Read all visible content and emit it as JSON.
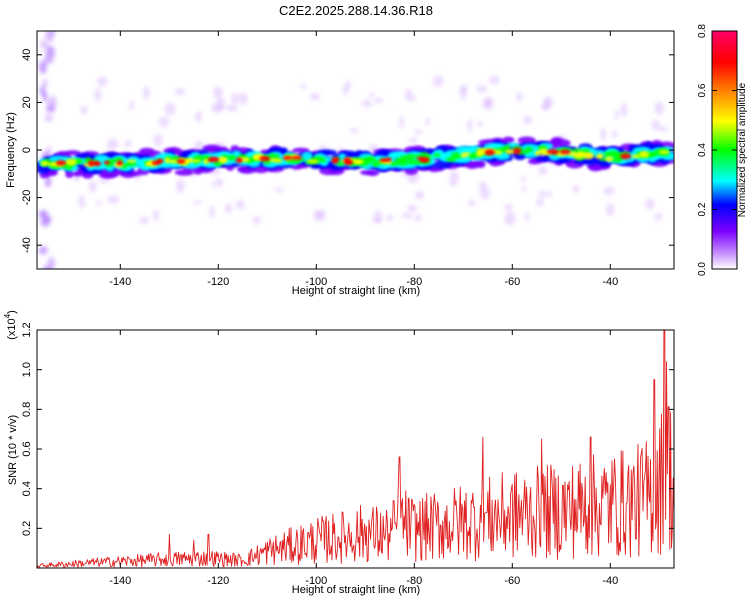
{
  "title": "C2E2.2025.288.14.36.R18",
  "chart_data": [
    {
      "type": "heatmap",
      "name": "spectrogram",
      "xlabel": "Height of straight line (km)",
      "ylabel": "Frequency (Hz)",
      "xlim": [
        -157,
        -27
      ],
      "ylim": [
        -50,
        50
      ],
      "xticks": [
        -140,
        -120,
        -100,
        -80,
        -60,
        -40
      ],
      "xtick_labels": [
        "-140",
        "-120",
        "-100",
        "-80",
        "-60",
        "-40"
      ],
      "yticks": [
        40,
        20,
        0,
        -20,
        -40
      ],
      "ytick_labels": [
        "40",
        "20",
        "0",
        "-20",
        "-40"
      ],
      "ridge": {
        "x": [
          -155,
          -140,
          -130,
          -120,
          -110,
          -100,
          -90,
          -80,
          -70,
          -60,
          -50,
          -40,
          -30,
          -28
        ],
        "y": [
          -6,
          -5.5,
          -5,
          -4,
          -3.5,
          -4,
          -5,
          -4,
          -2,
          0,
          -1,
          -3,
          -1,
          -1
        ],
        "width_hz": 6
      },
      "colorbar": {
        "label": "Normalized spectral amplitude",
        "range": [
          0.0,
          0.8
        ],
        "ticks": [
          0.0,
          0.2,
          0.4,
          0.6,
          0.8
        ],
        "tick_labels": [
          "0.0",
          "0.2",
          "0.4",
          "0.6",
          "0.8"
        ],
        "colors": [
          "#ffffff",
          "#cc99ff",
          "#7a00ff",
          "#0000ff",
          "#00ffff",
          "#00ff00",
          "#ffff00",
          "#ff8000",
          "#ff0000",
          "#ff0066"
        ]
      }
    },
    {
      "type": "line",
      "name": "snr",
      "xlabel": "Height of straight line (km)",
      "ylabel": "SNR (10 * v/v)",
      "scale_note": "(x10",
      "scale_exp": "4",
      "scale_close": ")",
      "xlim": [
        -157,
        -27
      ],
      "ylim": [
        0,
        1.2
      ],
      "xticks": [
        -140,
        -120,
        -100,
        -80,
        -60,
        -40
      ],
      "xtick_labels": [
        "-140",
        "-120",
        "-100",
        "-80",
        "-60",
        "-40"
      ],
      "yticks": [
        0.2,
        0.4,
        0.6,
        0.8,
        1.0,
        1.2
      ],
      "ytick_labels": [
        "0.2",
        "0.4",
        "0.6",
        "0.8",
        "1.0",
        "1.2"
      ],
      "color": "#e02020",
      "envelope": {
        "x": [
          -157,
          -145,
          -130,
          -122,
          -115,
          -110,
          -105,
          -100,
          -95,
          -90,
          -85,
          -83,
          -80,
          -75,
          -70,
          -65,
          -60,
          -55,
          -50,
          -45,
          -40,
          -35,
          -32,
          -30,
          -28,
          -27
        ],
        "y": [
          0.02,
          0.05,
          0.08,
          0.09,
          0.07,
          0.15,
          0.2,
          0.25,
          0.28,
          0.32,
          0.3,
          0.42,
          0.35,
          0.38,
          0.42,
          0.45,
          0.48,
          0.5,
          0.52,
          0.55,
          0.58,
          0.6,
          0.65,
          0.75,
          0.95,
          0.6
        ]
      },
      "peaks": [
        {
          "x": -130,
          "y": 0.17
        },
        {
          "x": -125,
          "y": 0.14
        },
        {
          "x": -122,
          "y": 0.17
        },
        {
          "x": -83,
          "y": 0.56
        },
        {
          "x": -66,
          "y": 0.66
        },
        {
          "x": -54,
          "y": 0.65
        },
        {
          "x": -44,
          "y": 0.66
        },
        {
          "x": -31,
          "y": 0.95
        },
        {
          "x": -29,
          "y": 1.2
        },
        {
          "x": -28.5,
          "y": 1.04
        }
      ]
    }
  ]
}
